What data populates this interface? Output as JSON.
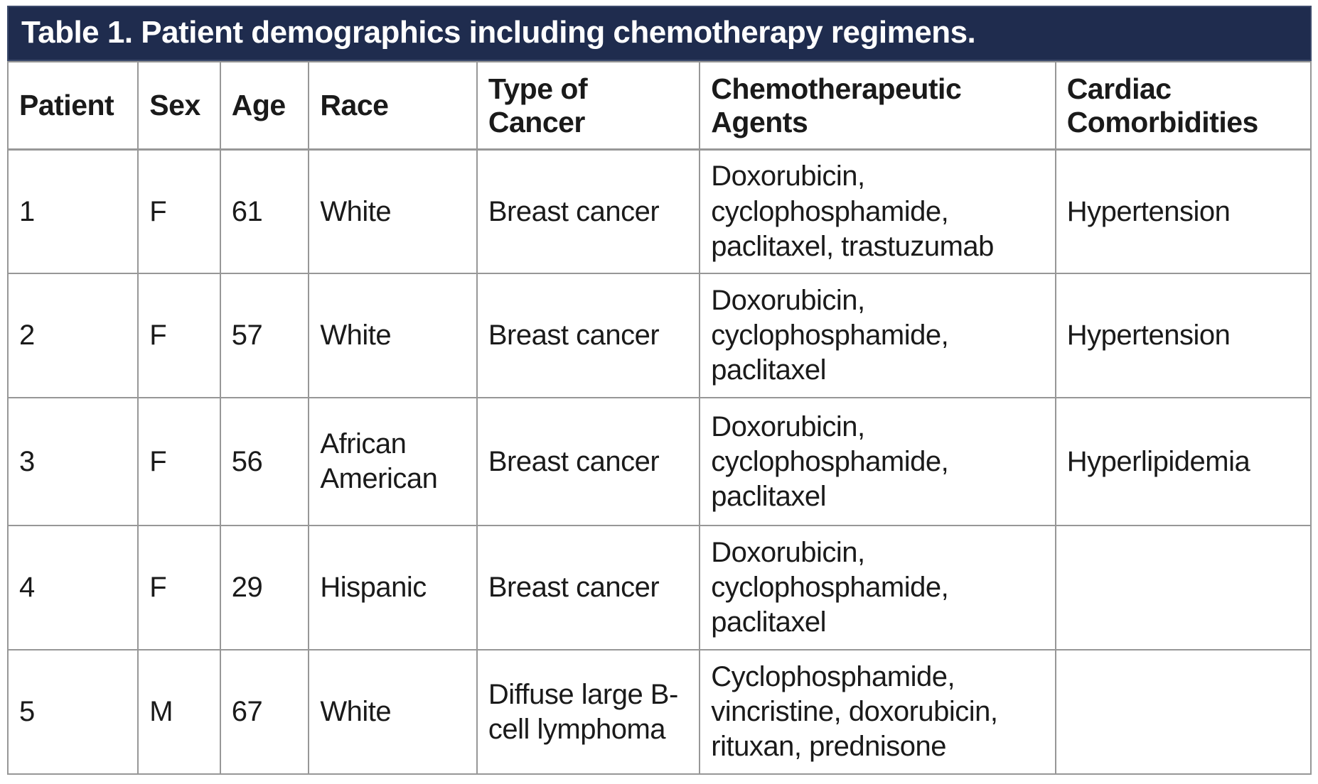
{
  "title": "Table 1. Patient demographics including chemotherapy regimens.",
  "colors": {
    "title_bar_bg": "#1f2c4e",
    "title_bar_text": "#ffffff",
    "table_border": "#979797",
    "body_text": "#1a1a1a"
  },
  "table": {
    "columns": [
      {
        "label": "Patient"
      },
      {
        "label": "Sex"
      },
      {
        "label": "Age"
      },
      {
        "label": "Race"
      },
      {
        "label": "Type of Cancer"
      },
      {
        "label": "Chemotherapeutic Agents"
      },
      {
        "label": "Cardiac Comorbidities"
      }
    ],
    "rows": [
      [
        "1",
        "F",
        "61",
        "White",
        "Breast cancer",
        "Doxorubicin, cyclophosphamide, paclitaxel, trastuzumab",
        "Hypertension"
      ],
      [
        "2",
        "F",
        "57",
        "White",
        "Breast cancer",
        "Doxorubicin, cyclophosphamide, paclitaxel",
        "Hypertension"
      ],
      [
        "3",
        "F",
        "56",
        "African American",
        "Breast cancer",
        "Doxorubicin, cyclophosphamide, paclitaxel",
        "Hyperlipidemia"
      ],
      [
        "4",
        "F",
        "29",
        "Hispanic",
        "Breast cancer",
        "Doxorubicin, cyclophosphamide, paclitaxel",
        ""
      ],
      [
        "5",
        "M",
        "67",
        "White",
        "Diffuse large B-cell lymphoma",
        "Cyclophosphamide, vincristine, doxorubicin, rituxan, prednisone",
        ""
      ]
    ]
  }
}
